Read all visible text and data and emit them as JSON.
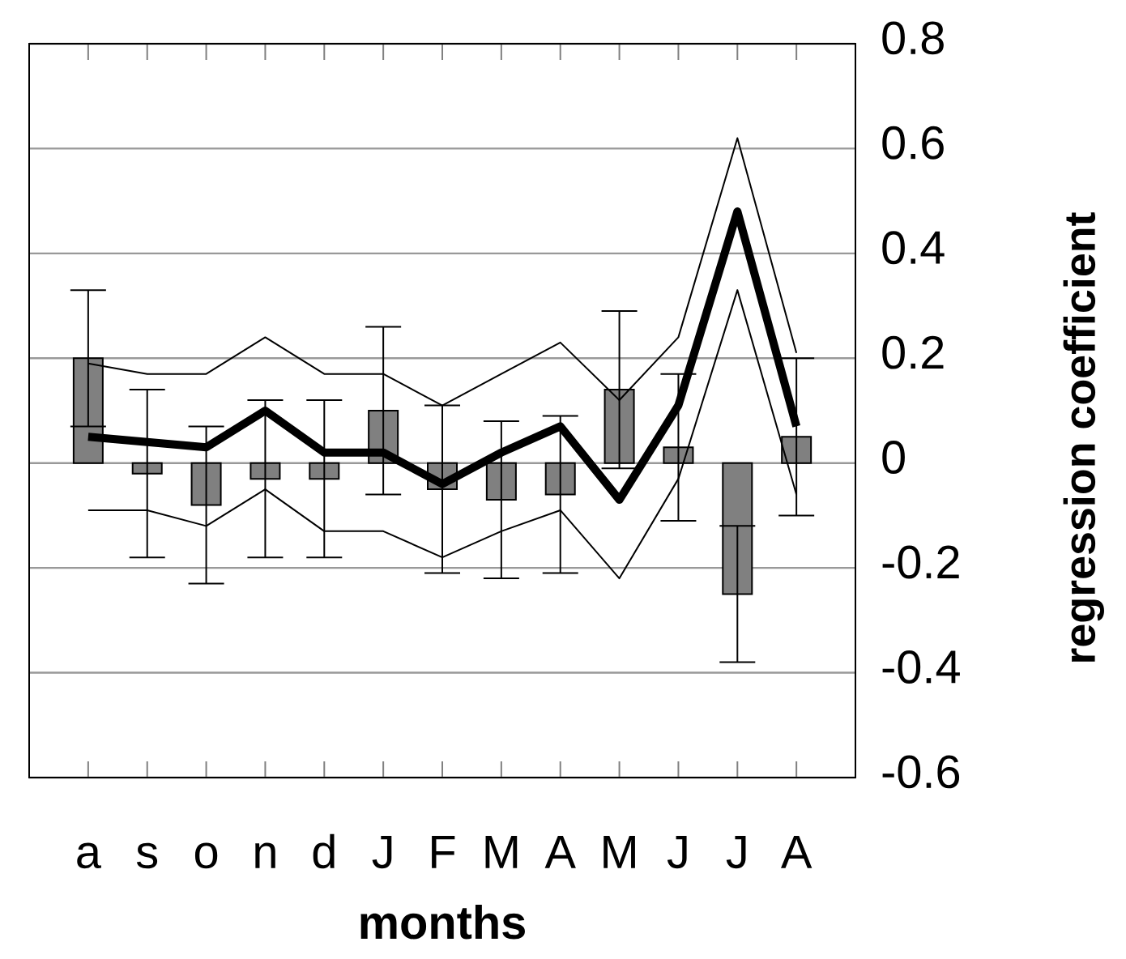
{
  "chart_data": {
    "type": "bar",
    "xlabel": "months",
    "ylabel": "regression coefficient",
    "categories": [
      "a",
      "s",
      "o",
      "n",
      "d",
      "J",
      "F",
      "M",
      "A",
      "M",
      "J",
      "J",
      "A"
    ],
    "ylim": [
      -0.6,
      0.8
    ],
    "yticks": [
      -0.6,
      -0.4,
      -0.2,
      0,
      0.2,
      0.4,
      0.6,
      0.8
    ],
    "grid": "y",
    "series": [
      {
        "color": "#808080",
        "values": [
          0.2,
          -0.02,
          -0.08,
          -0.03,
          -0.03,
          0.1,
          -0.05,
          -0.07,
          -0.06,
          0.14,
          0.03,
          -0.25,
          0.05
        ],
        "errors": [
          0.13,
          0.16,
          0.15,
          0.15,
          0.15,
          0.16,
          0.16,
          0.15,
          0.15,
          0.15,
          0.14,
          0.13,
          0.15
        ]
      },
      {
        "type": "line",
        "color": "#000000",
        "values": [
          0.05,
          0.04,
          0.03,
          0.1,
          0.02,
          0.02,
          -0.04,
          0.02,
          0.07,
          -0.07,
          0.11,
          0.48,
          0.07
        ]
      },
      {
        "type": "line",
        "color": "#000000",
        "values": [
          0.19,
          0.17,
          0.17,
          0.24,
          0.17,
          0.17,
          0.11,
          0.17,
          0.23,
          0.12,
          0.24,
          0.62,
          0.21
        ]
      },
      {
        "type": "line",
        "color": "#000000",
        "values": [
          -0.09,
          -0.09,
          -0.12,
          -0.05,
          -0.13,
          -0.13,
          -0.18,
          -0.13,
          -0.09,
          -0.22,
          -0.03,
          0.33,
          -0.06
        ]
      }
    ]
  }
}
